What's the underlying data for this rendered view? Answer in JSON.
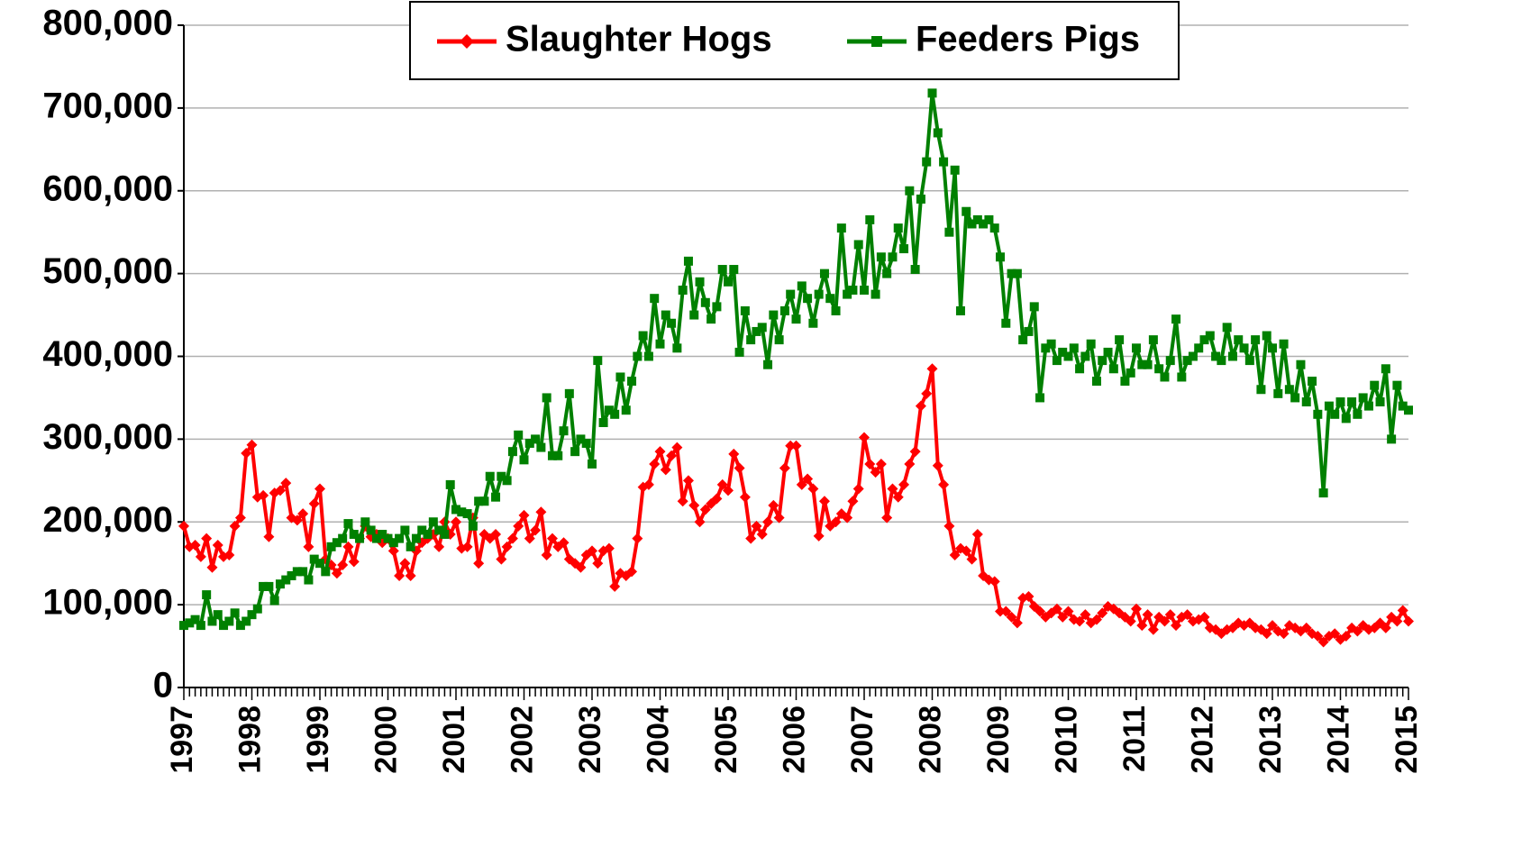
{
  "chart_data": {
    "type": "line",
    "categories": [
      "1997",
      null,
      null,
      null,
      null,
      null,
      null,
      null,
      null,
      null,
      null,
      null,
      "1998",
      null,
      null,
      null,
      null,
      null,
      null,
      null,
      null,
      null,
      null,
      null,
      "1999",
      null,
      null,
      null,
      null,
      null,
      null,
      null,
      null,
      null,
      null,
      null,
      "2000",
      null,
      null,
      null,
      null,
      null,
      null,
      null,
      null,
      null,
      null,
      null,
      "2001",
      null,
      null,
      null,
      null,
      null,
      null,
      null,
      null,
      null,
      null,
      null,
      "2002",
      null,
      null,
      null,
      null,
      null,
      null,
      null,
      null,
      null,
      null,
      null,
      "2003",
      null,
      null,
      null,
      null,
      null,
      null,
      null,
      null,
      null,
      null,
      null,
      "2004",
      null,
      null,
      null,
      null,
      null,
      null,
      null,
      null,
      null,
      null,
      null,
      "2005",
      null,
      null,
      null,
      null,
      null,
      null,
      null,
      null,
      null,
      null,
      null,
      "2006",
      null,
      null,
      null,
      null,
      null,
      null,
      null,
      null,
      null,
      null,
      null,
      "2007",
      null,
      null,
      null,
      null,
      null,
      null,
      null,
      null,
      null,
      null,
      null,
      "2008",
      null,
      null,
      null,
      null,
      null,
      null,
      null,
      null,
      null,
      null,
      null,
      "2009",
      null,
      null,
      null,
      null,
      null,
      null,
      null,
      null,
      null,
      null,
      null,
      "2010",
      null,
      null,
      null,
      null,
      null,
      null,
      null,
      null,
      null,
      null,
      null,
      "2011",
      null,
      null,
      null,
      null,
      null,
      null,
      null,
      null,
      null,
      null,
      null,
      "2012",
      null,
      null,
      null,
      null,
      null,
      null,
      null,
      null,
      null,
      null,
      null,
      "2013",
      null,
      null,
      null,
      null,
      null,
      null,
      null,
      null,
      null,
      null,
      null,
      "2014",
      null,
      null,
      null,
      null,
      null,
      null,
      null,
      null,
      null,
      null,
      null,
      "2015"
    ],
    "series": [
      {
        "name": "Slaughter Hogs",
        "color": "#ff0000",
        "marker": "diamond",
        "values": [
          195000,
          170000,
          172000,
          158000,
          180000,
          145000,
          172000,
          158000,
          160000,
          195000,
          205000,
          283000,
          293000,
          230000,
          232000,
          182000,
          235000,
          238000,
          247000,
          205000,
          202000,
          210000,
          170000,
          222000,
          240000,
          155000,
          148000,
          138000,
          148000,
          170000,
          152000,
          180000,
          195000,
          182000,
          185000,
          175000,
          180000,
          165000,
          135000,
          150000,
          135000,
          165000,
          175000,
          180000,
          185000,
          170000,
          200000,
          185000,
          200000,
          168000,
          170000,
          205000,
          150000,
          185000,
          180000,
          185000,
          155000,
          170000,
          180000,
          195000,
          208000,
          180000,
          190000,
          212000,
          160000,
          180000,
          170000,
          175000,
          155000,
          150000,
          145000,
          160000,
          165000,
          150000,
          165000,
          168000,
          122000,
          138000,
          135000,
          140000,
          180000,
          242000,
          245000,
          270000,
          285000,
          263000,
          280000,
          290000,
          225000,
          250000,
          220000,
          200000,
          215000,
          222000,
          228000,
          245000,
          238000,
          282000,
          265000,
          230000,
          180000,
          195000,
          185000,
          200000,
          220000,
          205000,
          265000,
          292000,
          292000,
          245000,
          252000,
          240000,
          183000,
          225000,
          195000,
          200000,
          210000,
          205000,
          225000,
          240000,
          302000,
          270000,
          260000,
          270000,
          205000,
          240000,
          230000,
          245000,
          270000,
          285000,
          340000,
          355000,
          385000,
          268000,
          245000,
          195000,
          160000,
          168000,
          165000,
          155000,
          185000,
          135000,
          130000,
          128000,
          92000,
          92000,
          85000,
          78000,
          108000,
          110000,
          98000,
          92000,
          85000,
          90000,
          95000,
          85000,
          92000,
          82000,
          80000,
          88000,
          78000,
          82000,
          90000,
          98000,
          95000,
          90000,
          85000,
          80000,
          95000,
          75000,
          88000,
          70000,
          85000,
          80000,
          88000,
          75000,
          85000,
          88000,
          80000,
          82000,
          85000,
          72000,
          70000,
          65000,
          70000,
          72000,
          78000,
          75000,
          78000,
          72000,
          70000,
          65000,
          75000,
          68000,
          65000,
          75000,
          72000,
          68000,
          72000,
          65000,
          62000,
          55000,
          62000,
          65000,
          58000,
          62000,
          72000,
          68000,
          75000,
          70000,
          72000,
          78000,
          72000,
          85000,
          80000,
          93000,
          80000
        ]
      },
      {
        "name": "Feeders Pigs",
        "color": "#008000",
        "marker": "square",
        "values": [
          75000,
          78000,
          82000,
          75000,
          112000,
          80000,
          88000,
          75000,
          80000,
          90000,
          75000,
          80000,
          88000,
          95000,
          122000,
          122000,
          105000,
          125000,
          130000,
          135000,
          140000,
          140000,
          130000,
          155000,
          150000,
          140000,
          170000,
          175000,
          180000,
          198000,
          185000,
          180000,
          200000,
          190000,
          180000,
          185000,
          180000,
          175000,
          180000,
          190000,
          170000,
          180000,
          190000,
          185000,
          200000,
          190000,
          185000,
          245000,
          215000,
          212000,
          210000,
          195000,
          225000,
          225000,
          255000,
          230000,
          255000,
          250000,
          285000,
          305000,
          275000,
          295000,
          300000,
          290000,
          350000,
          280000,
          280000,
          310000,
          355000,
          285000,
          300000,
          295000,
          270000,
          395000,
          320000,
          335000,
          330000,
          375000,
          335000,
          370000,
          400000,
          425000,
          400000,
          470000,
          415000,
          450000,
          440000,
          410000,
          480000,
          515000,
          450000,
          490000,
          465000,
          445000,
          460000,
          505000,
          490000,
          505000,
          405000,
          455000,
          420000,
          430000,
          435000,
          390000,
          450000,
          420000,
          455000,
          475000,
          445000,
          485000,
          470000,
          440000,
          475000,
          500000,
          470000,
          455000,
          555000,
          475000,
          480000,
          535000,
          480000,
          565000,
          475000,
          520000,
          500000,
          520000,
          555000,
          530000,
          600000,
          505000,
          590000,
          635000,
          718000,
          670000,
          635000,
          550000,
          625000,
          455000,
          575000,
          560000,
          565000,
          560000,
          565000,
          555000,
          520000,
          440000,
          500000,
          500000,
          420000,
          430000,
          460000,
          350000,
          410000,
          415000,
          395000,
          405000,
          400000,
          410000,
          385000,
          400000,
          415000,
          370000,
          395000,
          405000,
          385000,
          420000,
          370000,
          380000,
          410000,
          390000,
          390000,
          420000,
          385000,
          375000,
          395000,
          445000,
          375000,
          395000,
          400000,
          410000,
          420000,
          425000,
          400000,
          395000,
          435000,
          400000,
          420000,
          410000,
          395000,
          420000,
          360000,
          425000,
          410000,
          355000,
          415000,
          360000,
          350000,
          390000,
          345000,
          370000,
          330000,
          235000,
          340000,
          330000,
          345000,
          325000,
          345000,
          330000,
          350000,
          340000,
          365000,
          345000,
          385000,
          300000,
          365000,
          340000,
          335000
        ]
      }
    ],
    "ylim": [
      0,
      800000
    ],
    "yticks": [
      0,
      {
        "value": 100000,
        "label": "100,000"
      },
      {
        "value": 200000,
        "label": "200,000"
      },
      {
        "value": 300000,
        "label": "300,000"
      },
      {
        "value": 400000,
        "label": "400,000"
      },
      {
        "value": 500000,
        "label": "500,000"
      },
      {
        "value": 600000,
        "label": "600,000"
      },
      {
        "value": 700000,
        "label": "700,000"
      },
      {
        "value": 800000,
        "label": "800,000"
      }
    ],
    "grid": true,
    "legend": "top"
  }
}
